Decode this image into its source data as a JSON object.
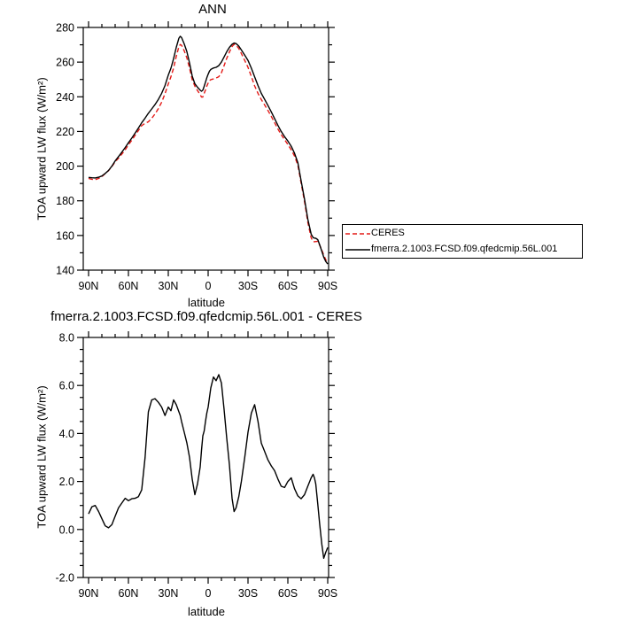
{
  "page": {
    "background": "#ffffff"
  },
  "chart_data": [
    {
      "type": "line",
      "title": "ANN",
      "xlabel": "latitude",
      "ylabel": "TOA upward LW flux (W/m²)",
      "x_ticks": {
        "major_deg": [
          90,
          60,
          30,
          0,
          -30,
          -60,
          -90
        ],
        "labels": [
          "90N",
          "60N",
          "30N",
          "0",
          "30S",
          "60S",
          "90S"
        ],
        "minor_step_deg": 10
      },
      "y_axis": {
        "min": 140,
        "max": 280,
        "major": [
          280,
          260,
          240,
          220,
          200,
          180,
          160,
          140
        ],
        "labels": [
          "280",
          "260",
          "240",
          "220",
          "200",
          "180",
          "160",
          "140"
        ],
        "minor_step": 10
      },
      "x_lat": [
        90,
        87.5,
        85,
        82.5,
        80,
        77.5,
        75,
        72.5,
        70,
        67.5,
        65,
        62.5,
        60,
        57.5,
        55,
        52.5,
        50,
        47.5,
        45,
        42.5,
        40,
        37.5,
        35,
        32.5,
        30,
        28,
        26,
        24,
        22,
        21,
        20,
        18,
        16,
        14,
        12,
        10,
        8,
        6,
        5,
        4,
        3,
        2,
        1,
        0,
        -1,
        -2,
        -4,
        -6,
        -8,
        -10,
        -12,
        -14,
        -16,
        -18,
        -19.5,
        -21,
        -23,
        -25,
        -27.5,
        -30,
        -32.5,
        -35,
        -37.5,
        -40,
        -42.5,
        -45,
        -47.5,
        -50,
        -52.5,
        -55,
        -57.5,
        -60,
        -62.5,
        -65,
        -67.5,
        -70,
        -72.5,
        -75,
        -77.5,
        -79,
        -80,
        -81,
        -82.5,
        -84,
        -85.5,
        -87,
        -88.5,
        -90
      ],
      "series": [
        {
          "name": "CERES",
          "color": "#e41a17",
          "dash": true,
          "values": [
            192.9,
            192.4,
            192.2,
            192.9,
            193.9,
            195.7,
            197.4,
            199.8,
            202.5,
            204.6,
            206.9,
            209.4,
            212.3,
            214.9,
            217.7,
            220.6,
            223.4,
            224.7,
            225.6,
            227.6,
            230.1,
            233.2,
            236.9,
            241.8,
            247.4,
            251.6,
            256.6,
            263.3,
            268.9,
            270.2,
            269.7,
            266.5,
            262.4,
            256.5,
            249.9,
            246.1,
            243.6,
            241.2,
            239.9,
            239.9,
            241.9,
            244.0,
            246.2,
            247.9,
            249.3,
            249.9,
            250.3,
            250.8,
            251.6,
            253.9,
            258.0,
            262.2,
            265.8,
            269.0,
            270.3,
            269.8,
            268.0,
            265.0,
            261.0,
            257.0,
            251.7,
            246.3,
            242.0,
            238.4,
            235.3,
            232.1,
            228.7,
            225.1,
            221.4,
            218.2,
            215.3,
            212.5,
            209.4,
            205.8,
            200.6,
            190.2,
            179.6,
            167.7,
            158.7,
            156.5,
            156.4,
            156.5,
            156.6,
            154.3,
            151.6,
            148.7,
            146.0,
            144.3
          ]
        },
        {
          "name": "fmerra.2.1003.FCSD.f09.qfedcmip.56L.001",
          "color": "#000000",
          "dash": false,
          "values": [
            193.5,
            193.3,
            193.2,
            193.6,
            194.3,
            195.8,
            197.5,
            200.0,
            203.0,
            205.5,
            208.0,
            210.7,
            213.5,
            216.2,
            219.0,
            222.0,
            225.0,
            227.7,
            230.5,
            233.0,
            235.5,
            238.5,
            242.0,
            246.5,
            252.5,
            256.5,
            262.0,
            268.5,
            273.8,
            274.9,
            274.2,
            270.5,
            266.0,
            259.5,
            252.0,
            247.5,
            245.5,
            243.8,
            243.2,
            243.8,
            246.0,
            248.5,
            251.0,
            253.0,
            254.8,
            255.8,
            256.6,
            257.0,
            258.0,
            260.0,
            263.0,
            266.0,
            268.5,
            270.3,
            271.0,
            270.7,
            269.3,
            267.0,
            264.0,
            261.0,
            256.5,
            251.5,
            246.5,
            242.0,
            238.5,
            235.0,
            231.3,
            227.5,
            223.5,
            220.0,
            217.0,
            214.5,
            211.5,
            207.5,
            202.0,
            191.5,
            181.0,
            169.5,
            160.8,
            158.8,
            158.5,
            158.4,
            157.6,
            154.5,
            151.0,
            147.5,
            145.0,
            143.5
          ]
        }
      ],
      "legend": {
        "entries": [
          {
            "label": "CERES",
            "color": "#e41a17",
            "dash": true
          },
          {
            "label": "fmerra.2.1003.FCSD.f09.qfedcmip.56L.001",
            "color": "#000000",
            "dash": false
          }
        ]
      }
    },
    {
      "type": "line",
      "title": "fmerra.2.1003.FCSD.f09.qfedcmip.56L.001 - CERES",
      "xlabel": "latitude",
      "ylabel": "TOA upward LW flux (W/m²)",
      "x_ticks": {
        "major_deg": [
          90,
          60,
          30,
          0,
          -30,
          -60,
          -90
        ],
        "labels": [
          "90N",
          "60N",
          "30N",
          "0",
          "30S",
          "60S",
          "90S"
        ],
        "minor_step_deg": 10
      },
      "y_axis": {
        "min": -2,
        "max": 8,
        "major": [
          8,
          6,
          4,
          2,
          0,
          -2
        ],
        "labels": [
          "8.0",
          "6.0",
          "4.0",
          "2.0",
          "0.0",
          "-2.0"
        ],
        "minor_step": 0.5
      },
      "x_lat": [
        90,
        87.5,
        85,
        82.5,
        80,
        77.5,
        75,
        72.5,
        70,
        67.5,
        65,
        62.5,
        60,
        57.5,
        55,
        52.5,
        50,
        47.5,
        45,
        42.5,
        40,
        37.5,
        35,
        32.5,
        30,
        28,
        26,
        24,
        22,
        21,
        20,
        18,
        16,
        14,
        12,
        10,
        8,
        6,
        5,
        4,
        3,
        2,
        1,
        0,
        -1,
        -2,
        -4,
        -6,
        -8,
        -10,
        -12,
        -14,
        -16,
        -18,
        -19.5,
        -21,
        -23,
        -25,
        -27.5,
        -30,
        -32.5,
        -35,
        -37.5,
        -40,
        -42.5,
        -45,
        -47.5,
        -50,
        -52.5,
        -55,
        -57.5,
        -60,
        -62.5,
        -65,
        -67.5,
        -70,
        -72.5,
        -75,
        -77.5,
        -79,
        -80,
        -81,
        -82.5,
        -84,
        -85.5,
        -87,
        -88.5,
        -90
      ],
      "series": [
        {
          "name": "fmerra.2.1003.FCSD.f09.qfedcmip.56L.001 - CERES",
          "color": "#000000",
          "dash": false,
          "values": [
            0.65,
            0.95,
            1.0,
            0.75,
            0.45,
            0.15,
            0.07,
            0.2,
            0.55,
            0.9,
            1.1,
            1.3,
            1.2,
            1.28,
            1.3,
            1.37,
            1.65,
            3.0,
            4.9,
            5.4,
            5.45,
            5.3,
            5.1,
            4.75,
            5.1,
            4.95,
            5.4,
            5.2,
            4.9,
            4.75,
            4.5,
            4.05,
            3.6,
            3.0,
            2.1,
            1.45,
            1.9,
            2.6,
            3.3,
            3.9,
            4.1,
            4.5,
            4.85,
            5.1,
            5.5,
            5.9,
            6.35,
            6.2,
            6.45,
            6.1,
            5.0,
            3.8,
            2.7,
            1.3,
            0.75,
            0.9,
            1.35,
            2.0,
            3.0,
            4.05,
            4.85,
            5.2,
            4.5,
            3.6,
            3.25,
            2.9,
            2.65,
            2.45,
            2.1,
            1.8,
            1.75,
            2.0,
            2.15,
            1.7,
            1.4,
            1.28,
            1.45,
            1.8,
            2.15,
            2.3,
            2.15,
            1.9,
            1.05,
            0.2,
            -0.6,
            -1.2,
            -0.95,
            -0.75
          ]
        }
      ]
    }
  ]
}
